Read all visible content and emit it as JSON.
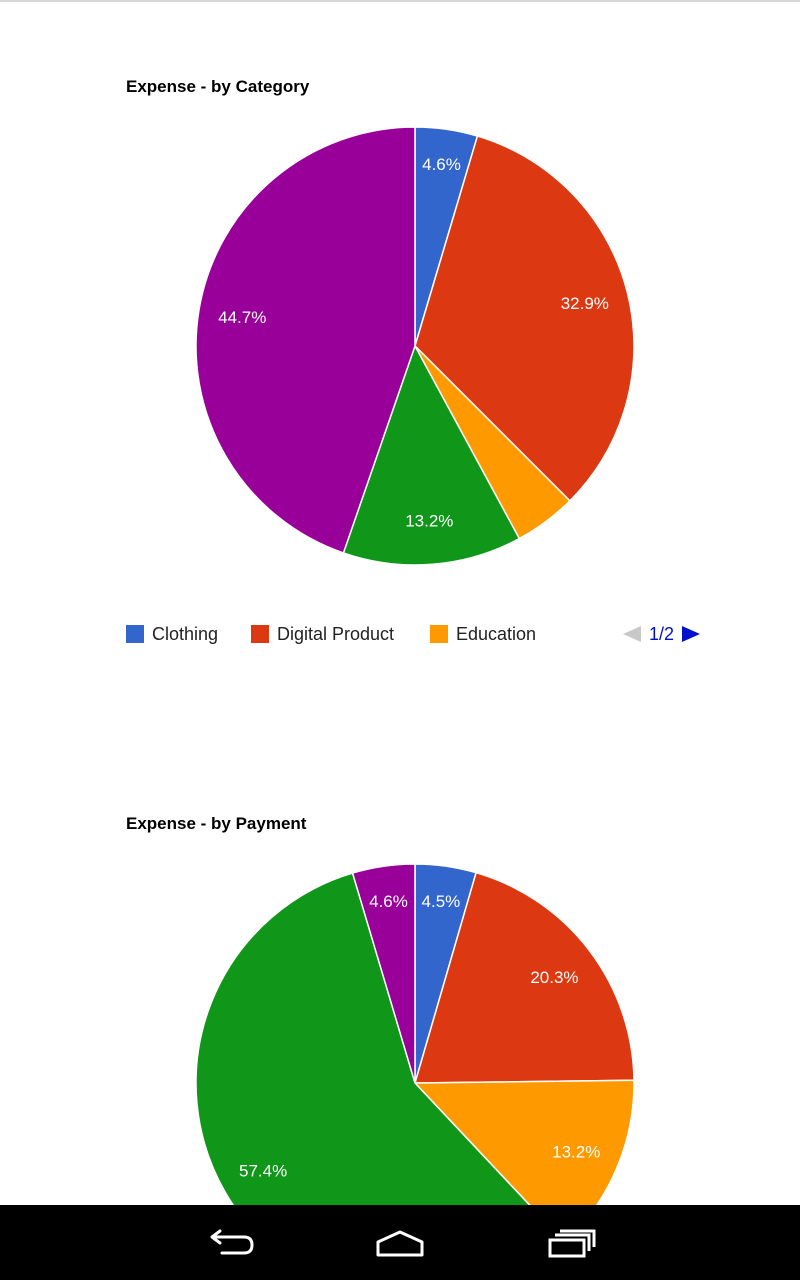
{
  "charts": {
    "category": {
      "title": "Expense - by Category",
      "legend": {
        "page": "1/2"
      }
    },
    "payment": {
      "title": "Expense - by Payment"
    }
  },
  "chart_data": [
    {
      "type": "pie",
      "title": "Expense - by Category",
      "slices": [
        {
          "label": "Clothing",
          "value": 4.6,
          "display": "4.6%",
          "color": "#3366cc",
          "show_label": true
        },
        {
          "label": "Digital Product",
          "value": 32.9,
          "display": "32.9%",
          "color": "#dc3912",
          "show_label": true
        },
        {
          "label": "Education",
          "value": 4.6,
          "display": "",
          "color": "#ff9900",
          "show_label": false
        },
        {
          "label": "",
          "value": 13.2,
          "display": "13.2%",
          "color": "#109618",
          "show_label": true
        },
        {
          "label": "",
          "value": 44.7,
          "display": "44.7%",
          "color": "#990099",
          "show_label": true
        }
      ],
      "legend": {
        "items": [
          "Clothing",
          "Digital Product",
          "Education"
        ],
        "colors": [
          "#3366cc",
          "#dc3912",
          "#ff9900"
        ],
        "placement": "bottom",
        "page": "1/2"
      }
    },
    {
      "type": "pie",
      "title": "Expense - by Payment",
      "slices": [
        {
          "label": "",
          "value": 4.5,
          "display": "4.5%",
          "color": "#3366cc",
          "show_label": true
        },
        {
          "label": "",
          "value": 20.3,
          "display": "20.3%",
          "color": "#dc3912",
          "show_label": true
        },
        {
          "label": "",
          "value": 13.2,
          "display": "13.2%",
          "color": "#ff9900",
          "show_label": true
        },
        {
          "label": "",
          "value": 57.4,
          "display": "57.4%",
          "color": "#109618",
          "show_label": true
        },
        {
          "label": "",
          "value": 4.6,
          "display": "4.6%",
          "color": "#990099",
          "show_label": true
        }
      ]
    }
  ],
  "navbar": {
    "icons": [
      "back-icon",
      "home-icon",
      "recent-apps-icon"
    ]
  }
}
